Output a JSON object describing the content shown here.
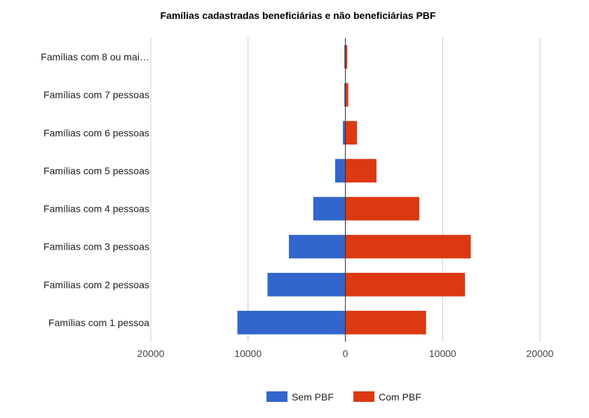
{
  "chart_data": {
    "type": "bar",
    "orientation": "horizontal",
    "title": "Famílias cadastradas beneficiárias e não beneficiárias PBF",
    "categories": [
      "Famílias com 8 ou mai…",
      "Famílias com 7 pessoas",
      "Famílias com 6 pessoas",
      "Famílias com 5 pessoas",
      "Famílias com 4 pessoas",
      "Famílias com 3 pessoas",
      "Famílias com 2 pessoas",
      "Famílias com 1 pessoa"
    ],
    "series": [
      {
        "name": "Sem PBF",
        "color": "#3366cc",
        "direction": "negative",
        "values": [
          100,
          100,
          250,
          1050,
          3300,
          5800,
          8000,
          11100
        ]
      },
      {
        "name": "Com PBF",
        "color": "#dc3912",
        "direction": "positive",
        "values": [
          200,
          300,
          1200,
          3200,
          7600,
          12900,
          12300,
          8300
        ]
      }
    ],
    "xlim": [
      -20000,
      20000
    ],
    "x_ticks": [
      -20000,
      -10000,
      0,
      10000,
      20000
    ],
    "x_tick_labels": [
      "20000",
      "10000",
      "0",
      "10000",
      "20000"
    ],
    "grid": true,
    "legend_position": "bottom",
    "xlabel": "",
    "ylabel": ""
  }
}
